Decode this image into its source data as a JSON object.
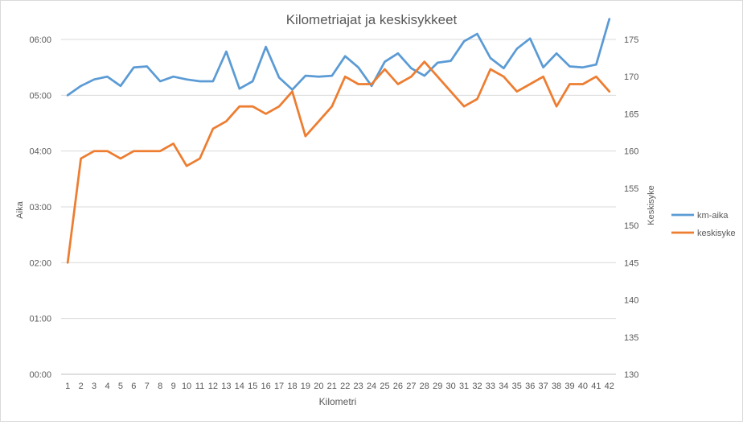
{
  "chart_data": {
    "type": "line",
    "title": "Kilometriajat ja keskisykkeet",
    "xlabel": "Kilometri",
    "ylabel": "Aika",
    "y2label": "Keskisyke",
    "categories": [
      "1",
      "2",
      "3",
      "4",
      "5",
      "6",
      "7",
      "8",
      "9",
      "10",
      "11",
      "12",
      "13",
      "14",
      "15",
      "16",
      "17",
      "18",
      "19",
      "20",
      "21",
      "22",
      "23",
      "24",
      "25",
      "26",
      "27",
      "28",
      "29",
      "30",
      "31",
      "32",
      "33",
      "34",
      "35",
      "36",
      "37",
      "38",
      "39",
      "40",
      "41",
      "42"
    ],
    "y_ticks": [
      "00:00",
      "01:00",
      "02:00",
      "03:00",
      "04:00",
      "05:00",
      "06:00"
    ],
    "y_range_seconds": [
      0,
      360
    ],
    "y2_ticks": [
      "130",
      "135",
      "140",
      "145",
      "150",
      "155",
      "160",
      "165",
      "170",
      "175"
    ],
    "y2_range": [
      130,
      175
    ],
    "grid": "horizontal",
    "legend_position": "right",
    "series": [
      {
        "name": "km-aika",
        "axis": "left",
        "color": "#5b9bd5",
        "values_seconds": [
          300,
          310,
          317,
          320,
          310,
          330,
          331,
          315,
          320,
          317,
          315,
          315,
          347,
          307,
          315,
          352,
          319,
          306,
          321,
          320,
          321,
          342,
          330,
          310,
          336,
          345,
          329,
          321,
          335,
          337,
          358,
          366,
          340,
          329,
          350,
          361,
          330,
          345,
          331,
          330,
          333,
          382
        ]
      },
      {
        "name": "keskisyke",
        "axis": "right",
        "color": "#ed7d31",
        "values": [
          145,
          159,
          160,
          160,
          159,
          160,
          160,
          160,
          161,
          158,
          159,
          163,
          164,
          166,
          166,
          165,
          166,
          168,
          162,
          164,
          166,
          170,
          169,
          169,
          171,
          169,
          170,
          172,
          170,
          168,
          166,
          167,
          171,
          170,
          168,
          169,
          170,
          166,
          169,
          169,
          170,
          168
        ]
      }
    ]
  }
}
